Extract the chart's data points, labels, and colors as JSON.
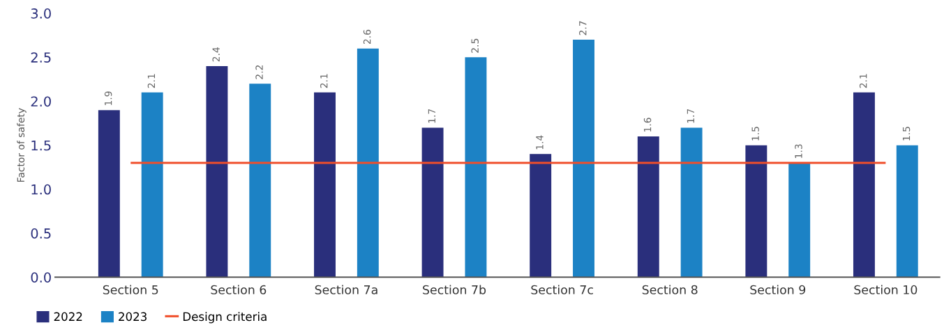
{
  "chart_data": {
    "type": "bar",
    "ylabel": "Factor of safety",
    "categories": [
      "Section 5",
      "Section 6",
      "Section 7a",
      "Section 7b",
      "Section 7c",
      "Section 8",
      "Section 9",
      "Section 10"
    ],
    "series": [
      {
        "name": "2022",
        "color": "#2a2f7c",
        "values": [
          1.9,
          2.4,
          2.1,
          1.7,
          1.4,
          1.6,
          1.5,
          2.1
        ]
      },
      {
        "name": "2023",
        "color": "#1c82c5",
        "values": [
          2.1,
          2.2,
          2.6,
          2.5,
          2.7,
          1.7,
          1.3,
          1.5
        ]
      }
    ],
    "ylim": [
      0,
      3.0
    ],
    "yticks": [
      {
        "value": 0,
        "label": "0.0"
      },
      {
        "value": 0.5,
        "label": "0.5"
      },
      {
        "value": 1.0,
        "label": "1.0"
      },
      {
        "value": 1.5,
        "label": "1.5"
      },
      {
        "value": 2.0,
        "label": "2.0"
      },
      {
        "value": 2.5,
        "label": "2.5"
      },
      {
        "value": 3.0,
        "label": "3.0"
      }
    ],
    "ref_lines": [
      {
        "axis": "y",
        "value": 1.3,
        "label": "Design criteria",
        "color": "#f04e2a",
        "line_style": "solid"
      }
    ],
    "data_labels": true,
    "grid": false,
    "legend": "bottom left"
  }
}
